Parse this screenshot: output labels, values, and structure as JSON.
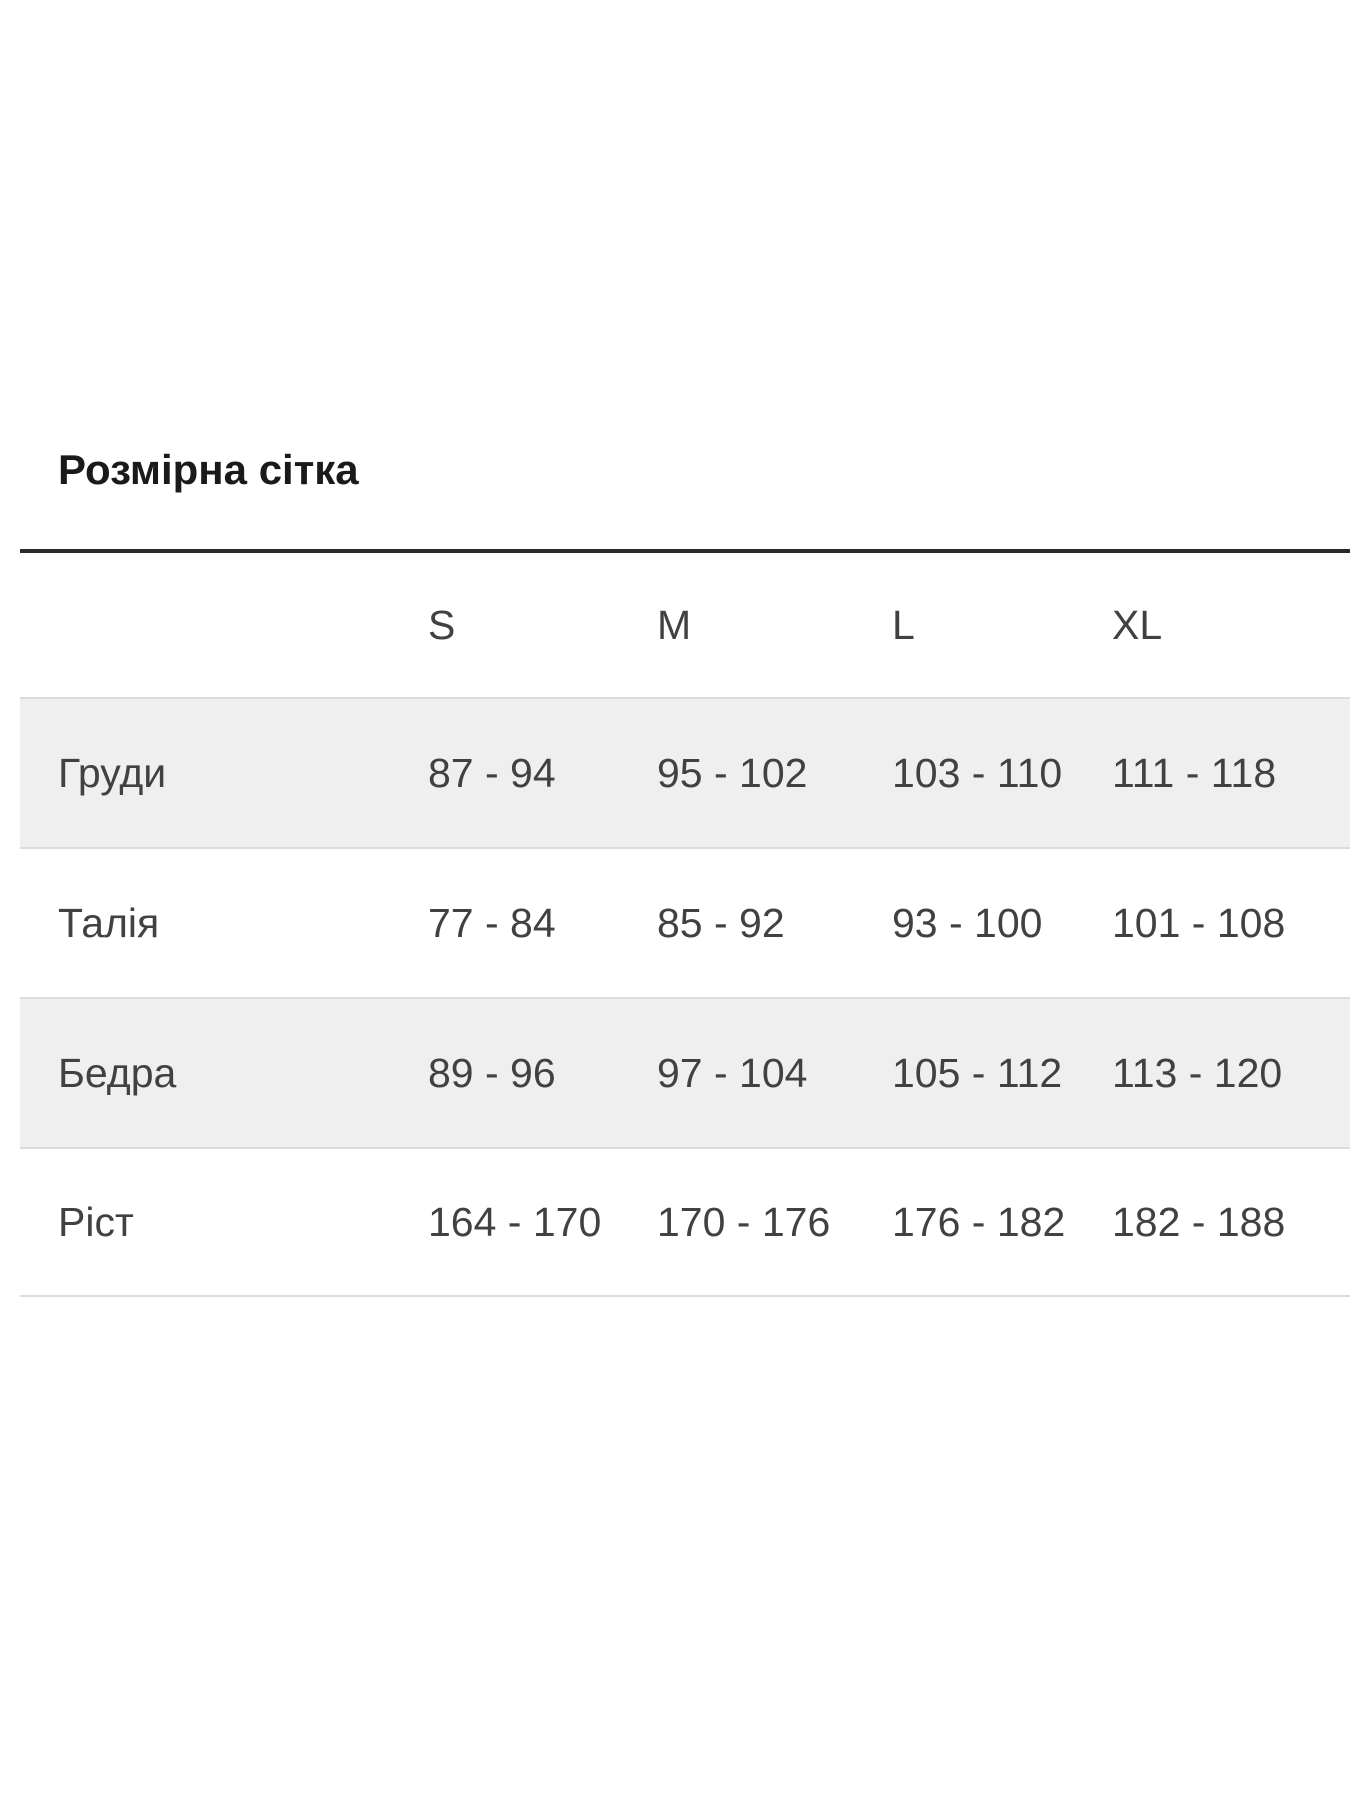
{
  "page": {
    "title": "Розмірна сітка"
  },
  "table": {
    "columns": [
      "S",
      "M",
      "L",
      "XL"
    ],
    "rows": [
      {
        "label": "Груди",
        "values": [
          "87 - 94",
          "95 - 102",
          "103 - 110",
          "111 - 118"
        ]
      },
      {
        "label": "Талія",
        "values": [
          "77 - 84",
          "85 - 92",
          "93 - 100",
          "101 - 108"
        ]
      },
      {
        "label": "Бедра",
        "values": [
          "89 - 96",
          "97 - 104",
          "105 - 112",
          "113 - 120"
        ]
      },
      {
        "label": "Ріст",
        "values": [
          "164 - 170",
          "170 - 176",
          "176 - 182",
          "182 - 188"
        ]
      }
    ],
    "colors": {
      "row_alt_bg": "#efefef",
      "row_border": "#dcdcdc",
      "header_line": "#2a2a2a",
      "text": "#414141",
      "title_text": "#1a1a1a"
    }
  }
}
